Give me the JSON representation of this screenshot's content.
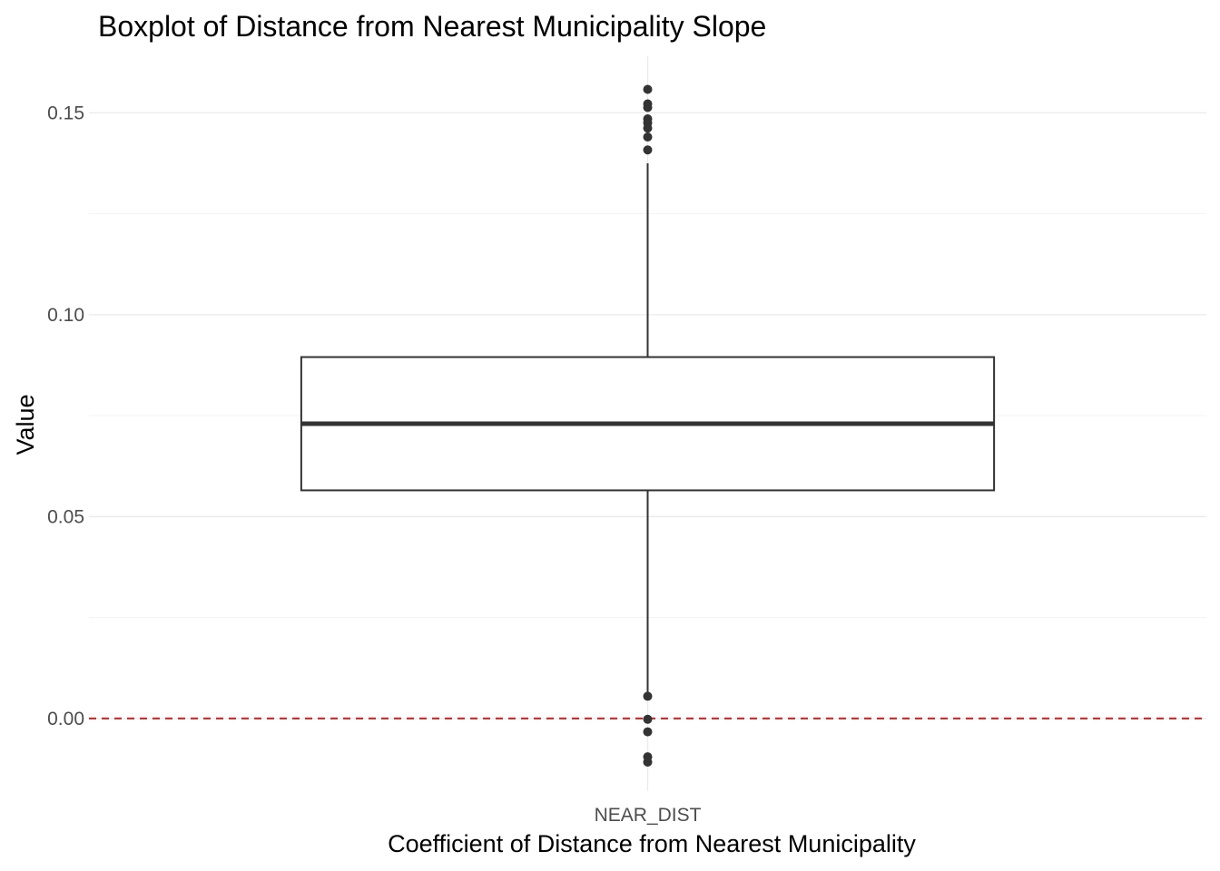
{
  "chart_data": {
    "type": "boxplot",
    "title": "Boxplot of Distance from Nearest Municipality Slope",
    "xlabel": "Coefficient of Distance from Nearest Municipality",
    "ylabel": "Value",
    "categories": [
      "NEAR_DIST"
    ],
    "y_ticks": [
      {
        "value": 0.0,
        "label": "0.00"
      },
      {
        "value": 0.05,
        "label": "0.05"
      },
      {
        "value": 0.1,
        "label": "0.10"
      },
      {
        "value": 0.15,
        "label": "0.15"
      }
    ],
    "ylim": [
      -0.018,
      0.164
    ],
    "grid": true,
    "boxes": [
      {
        "category": "NEAR_DIST",
        "whisker_low": 0.006,
        "q1": 0.0565,
        "median": 0.073,
        "q3": 0.0895,
        "whisker_high": 0.1375,
        "outliers": [
          0.1558,
          0.1522,
          0.1513,
          0.1485,
          0.1475,
          0.1462,
          0.144,
          0.1408,
          0.0055,
          -0.0002,
          -0.0033,
          -0.0095,
          -0.0108
        ]
      }
    ],
    "reference_line": {
      "y": 0.0,
      "style": "dashed",
      "color": "#e41a1c"
    },
    "colors": {
      "box_fill": "#ffffff",
      "box_stroke": "#333333",
      "outlier": "#333333",
      "grid": "#ebebeb"
    }
  }
}
